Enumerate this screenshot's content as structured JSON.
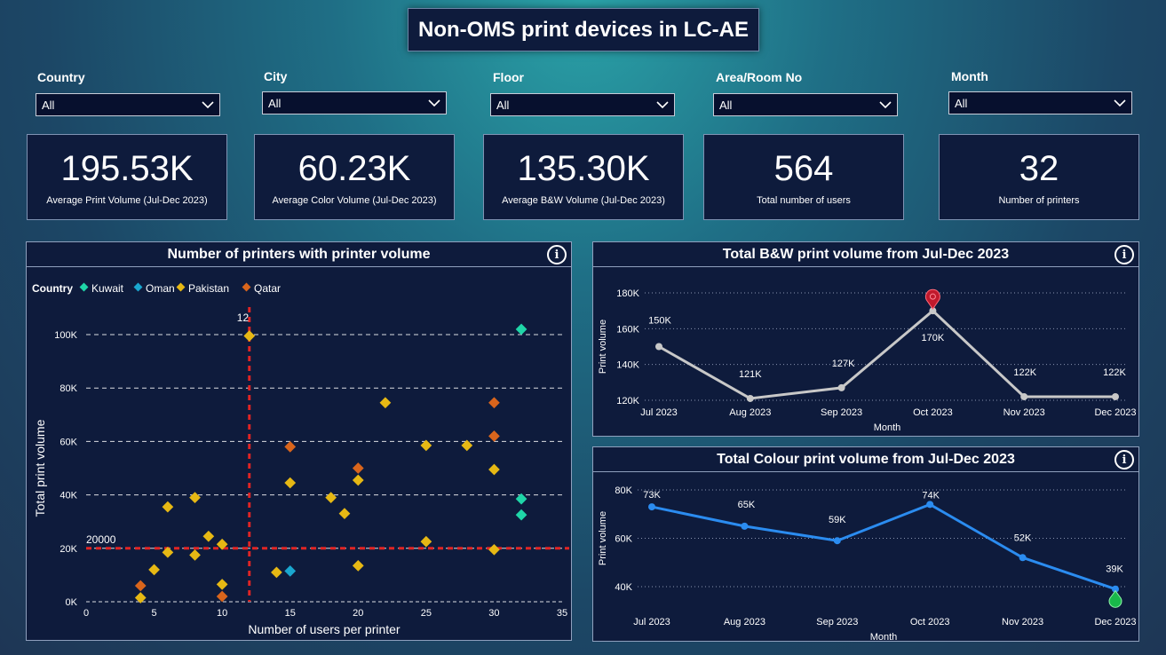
{
  "page_title": "Non-OMS print devices in LC-AE",
  "filters": [
    {
      "label": "Country",
      "value": "All"
    },
    {
      "label": "City",
      "value": "All"
    },
    {
      "label": "Floor",
      "value": "All"
    },
    {
      "label": "Area/Room No",
      "value": "All"
    },
    {
      "label": "Month",
      "value": "All"
    }
  ],
  "kpis": [
    {
      "value": "195.53K",
      "label": "Average Print Volume (Jul-Dec 2023)"
    },
    {
      "value": "60.23K",
      "label": "Average Color Volume (Jul-Dec 2023)"
    },
    {
      "value": "135.30K",
      "label": "Average B&W Volume (Jul-Dec 2023)"
    },
    {
      "value": "564",
      "label": "Total number of users"
    },
    {
      "value": "32",
      "label": "Number of printers"
    }
  ],
  "icons": {
    "info": "info-icon",
    "dropdown": "chevron-down-icon"
  },
  "colors": {
    "kuwait": "#1fd6a8",
    "oman": "#1aa7cf",
    "pakistan": "#e6b814",
    "qatar": "#d9651c",
    "refline": "#e02424",
    "bw_line": "#c8c8c8",
    "color_line": "#2b8cf0",
    "max_marker": "#c0192c",
    "min_marker": "#19b84a"
  },
  "chart_data": [
    {
      "type": "scatter",
      "title": "Number of printers with printer volume",
      "xlabel": "Number of users per printer",
      "ylabel": "Total print volume",
      "xlim": [
        0,
        35
      ],
      "ylim": [
        0,
        100000
      ],
      "xticks": [
        "0",
        "5",
        "10",
        "15",
        "20",
        "25",
        "30",
        "35"
      ],
      "yticks": [
        "0K",
        "20K",
        "40K",
        "60K",
        "80K",
        "100K"
      ],
      "legend_title": "Country",
      "legend_position": "top-left",
      "series": [
        {
          "name": "Kuwait",
          "points": [
            [
              32,
              102000
            ],
            [
              32,
              38500
            ],
            [
              32,
              32500
            ]
          ]
        },
        {
          "name": "Oman",
          "points": [
            [
              15,
              11500
            ]
          ]
        },
        {
          "name": "Pakistan",
          "points": [
            [
              4,
              1500
            ],
            [
              5,
              12000
            ],
            [
              6,
              35500
            ],
            [
              6,
              18500
            ],
            [
              8,
              39000
            ],
            [
              8,
              17500
            ],
            [
              9,
              24500
            ],
            [
              10,
              21500
            ],
            [
              10,
              6500
            ],
            [
              12,
              99500
            ],
            [
              14,
              11000
            ],
            [
              15,
              44500
            ],
            [
              18,
              39000
            ],
            [
              19,
              33000
            ],
            [
              20,
              45500
            ],
            [
              20,
              13500
            ],
            [
              22,
              74500
            ],
            [
              25,
              58500
            ],
            [
              25,
              22500
            ],
            [
              28,
              58500
            ],
            [
              30,
              49500
            ],
            [
              30,
              19500
            ]
          ]
        },
        {
          "name": "Qatar",
          "points": [
            [
              4,
              6000
            ],
            [
              10,
              2000
            ],
            [
              15,
              58000
            ],
            [
              20,
              50000
            ],
            [
              30,
              74500
            ],
            [
              30,
              62000
            ]
          ]
        }
      ],
      "reference_lines": [
        {
          "axis": "x",
          "value": 12,
          "label": "12"
        },
        {
          "axis": "y",
          "value": 20000,
          "label": "20000"
        }
      ],
      "grid": "horizontal dashed"
    },
    {
      "type": "line",
      "title": "Total B&W print volume from Jul-Dec 2023",
      "xlabel": "Month",
      "ylabel": "Print volume",
      "categories": [
        "Jul 2023",
        "Aug 2023",
        "Sep 2023",
        "Oct 2023",
        "Nov 2023",
        "Dec 2023"
      ],
      "values": [
        150000,
        121000,
        127000,
        170000,
        122000,
        122000
      ],
      "data_labels": [
        "150K",
        "121K",
        "127K",
        "170K",
        "122K",
        "122K"
      ],
      "ylim": [
        120000,
        180000
      ],
      "yticks": [
        "120K",
        "140K",
        "160K",
        "180K"
      ],
      "highlight": {
        "index": 3,
        "kind": "max"
      }
    },
    {
      "type": "line",
      "title": "Total Colour print volume from Jul-Dec 2023",
      "xlabel": "Month",
      "ylabel": "Print volume",
      "categories": [
        "Jul 2023",
        "Aug 2023",
        "Sep 2023",
        "Oct 2023",
        "Nov 2023",
        "Dec 2023"
      ],
      "values": [
        73000,
        65000,
        59000,
        74000,
        52000,
        39000
      ],
      "data_labels": [
        "73K",
        "65K",
        "59K",
        "74K",
        "52K",
        "39K"
      ],
      "ylim": [
        40000,
        80000
      ],
      "yticks": [
        "40K",
        "60K",
        "80K"
      ],
      "highlight": {
        "index": 5,
        "kind": "min"
      }
    }
  ]
}
